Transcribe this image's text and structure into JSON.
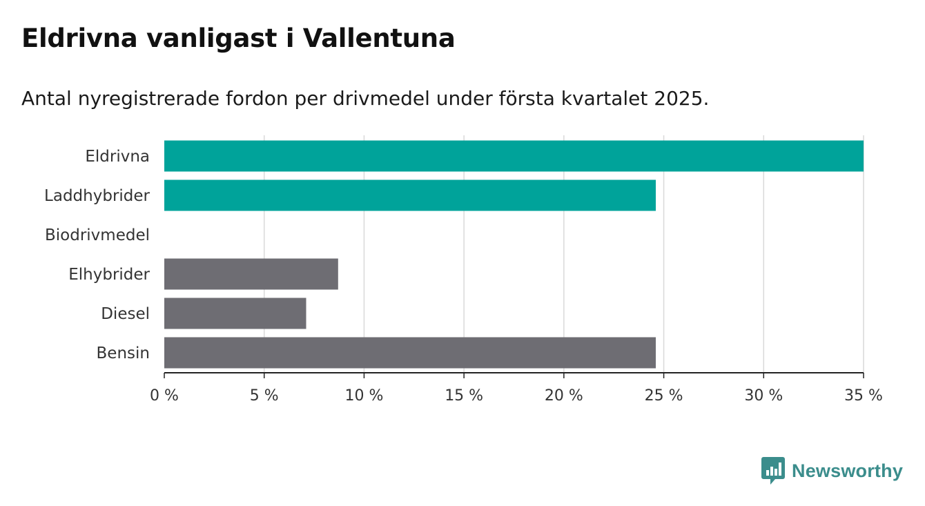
{
  "chart_data": {
    "type": "bar",
    "orientation": "horizontal",
    "title": "Eldrivna vanligast i Vallentuna",
    "subtitle": "Antal nyregistrerade fordon per drivmedel under första kvartalet 2025.",
    "categories": [
      "Eldrivna",
      "Laddhybrider",
      "Biodrivmedel",
      "Elhybrider",
      "Diesel",
      "Bensin"
    ],
    "values": [
      35.0,
      24.6,
      0,
      8.7,
      7.1,
      24.6
    ],
    "bar_colors": [
      "#00a39a",
      "#00a39a",
      "#00a39a",
      "#6e6d73",
      "#6e6d73",
      "#6e6d73"
    ],
    "xlim": [
      0,
      35
    ],
    "xticks": [
      0,
      5,
      10,
      15,
      20,
      25,
      30,
      35
    ],
    "tick_labels": [
      "0 %",
      "5 %",
      "10 %",
      "15 %",
      "20 %",
      "25 %",
      "30 %",
      "35 %"
    ],
    "grid": "vertical",
    "xlabel": "",
    "ylabel": ""
  },
  "brand": {
    "name": "Newsworthy",
    "color": "#3b8d8c",
    "icon": "newsworthy-chart-icon"
  }
}
